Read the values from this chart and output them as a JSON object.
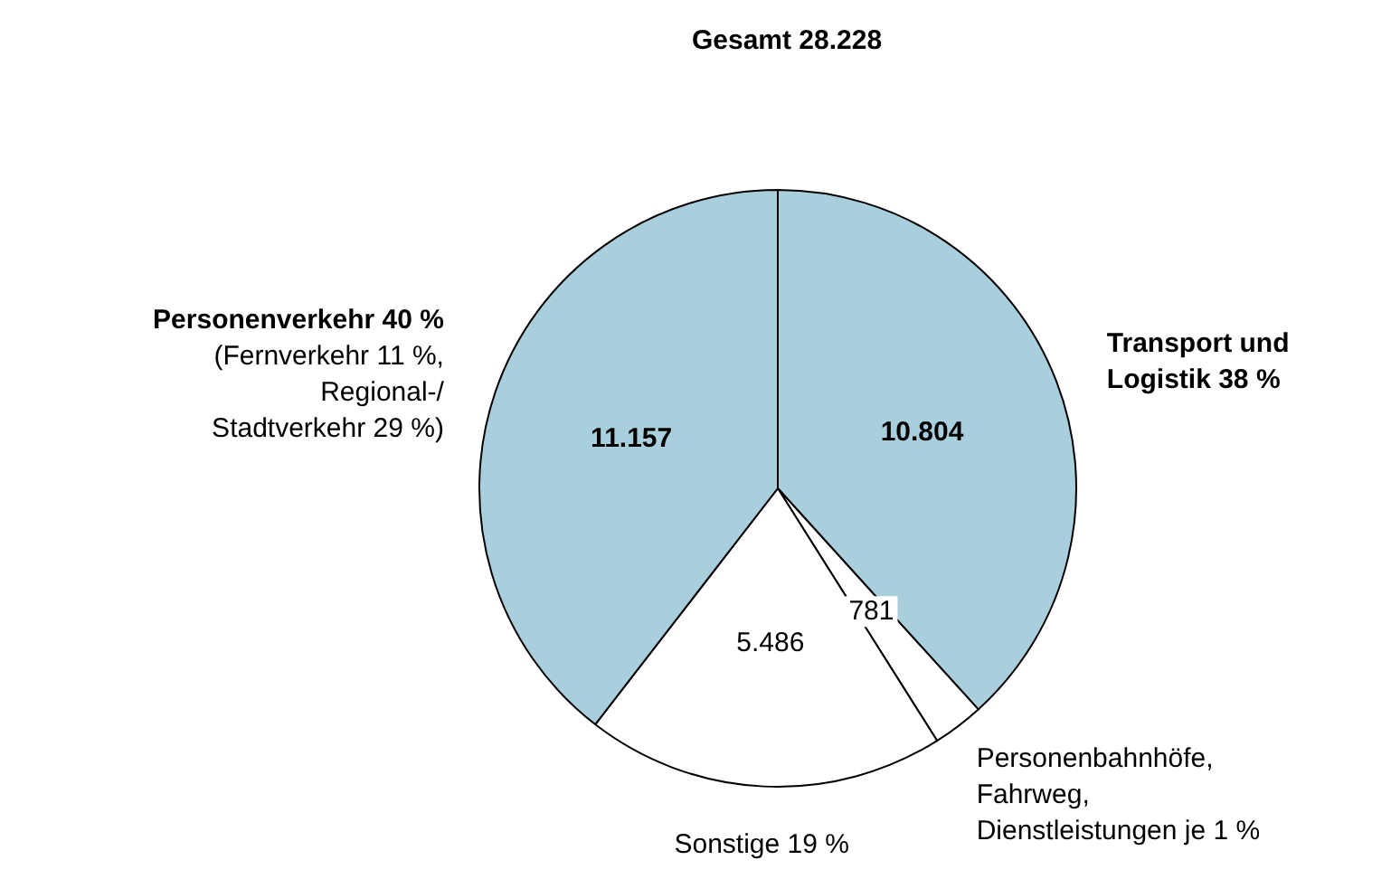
{
  "chart_data": {
    "type": "pie",
    "title": "Gesamt 28.228",
    "categories": [
      "Transport und\nLogistik 38 %",
      "Personenbahnhöfe,\nFahrweg,\nDienstleistungen je 1 %",
      "Sonstige 19 %",
      "Personenverkehr 40 %\n(Fernverkehr 11 %,\nRegional-/\nStadtverkehr 29 %)"
    ],
    "values": [
      10804,
      781,
      5486,
      11157
    ],
    "value_labels": [
      "10.804",
      "781",
      "5.486",
      "11.157"
    ],
    "colors": [
      "#a9cfdd",
      "#ffffff",
      "#ffffff",
      "#a9cfdd"
    ],
    "legend": false
  }
}
